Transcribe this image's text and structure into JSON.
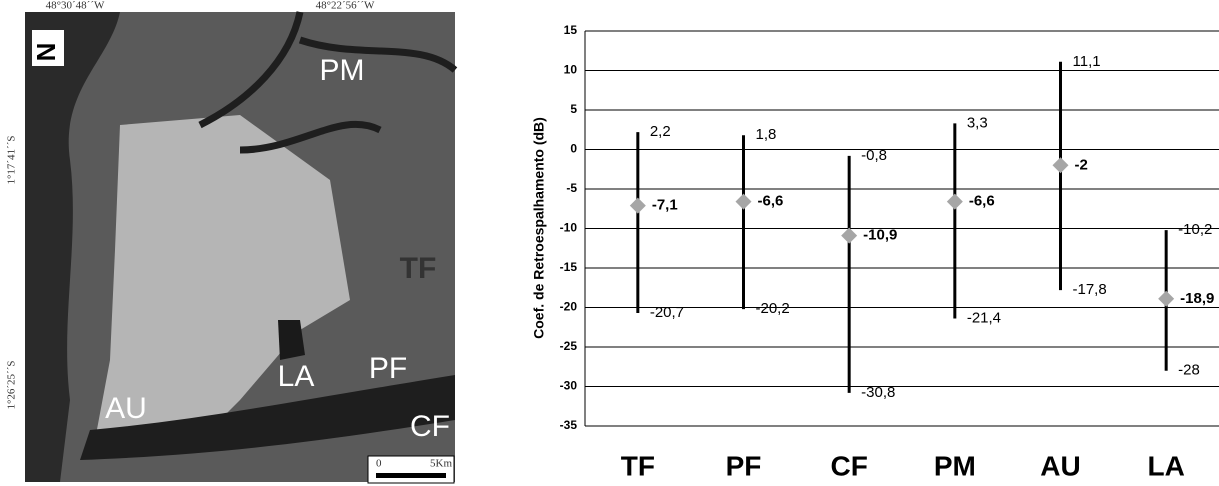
{
  "map": {
    "longitudes": [
      "48°30´48´´W",
      "48°22´56´´W"
    ],
    "latitudes": [
      "1°17´41´´S",
      "1°26´25´´S"
    ],
    "north": "N",
    "regions": [
      "PM",
      "TF",
      "PF",
      "LA",
      "AU",
      "CF"
    ],
    "scale": [
      "0",
      "5Km"
    ]
  },
  "chart_data": {
    "type": "range",
    "y_label": "Coef. de Retroespalhamento (dB)",
    "categories": [
      "TF",
      "PF",
      "CF",
      "PM",
      "AU",
      "LA"
    ],
    "high": {
      "values": [
        2.2,
        1.8,
        -0.8,
        3.3,
        11.1,
        -10.2
      ],
      "value_labels": [
        "2,2",
        "1,8",
        "-0,8",
        "3,3",
        "11,1",
        "-10,2"
      ]
    },
    "mean": {
      "values": [
        -7.1,
        -6.6,
        -10.9,
        -6.6,
        -2,
        -18.9
      ],
      "value_labels": [
        "-7,1",
        "-6,6",
        "-10,9",
        "-6,6",
        "-2",
        "-18,9"
      ]
    },
    "low": {
      "values": [
        -20.7,
        -20.2,
        -30.8,
        -21.4,
        -17.8,
        -28
      ],
      "value_labels": [
        "-20,7",
        "-20,2",
        "-30,8",
        "-21,4",
        "-17,8",
        "-28"
      ]
    },
    "line_color": "#000000",
    "marker_color": "#a6a6a6",
    "ylim": [
      -35,
      15
    ],
    "yticks": [
      -35,
      -30,
      -25,
      -20,
      -15,
      -10,
      -5,
      0,
      5,
      10,
      15
    ],
    "grid": true
  }
}
